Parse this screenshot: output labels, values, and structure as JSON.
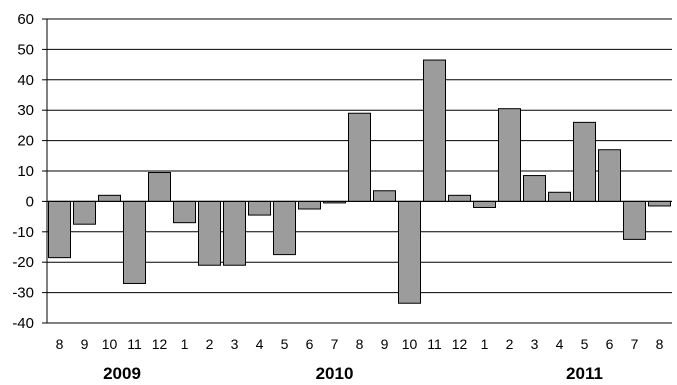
{
  "chart_data": {
    "type": "bar",
    "title": "",
    "xlabel": "",
    "ylabel": "",
    "ylim": [
      -40,
      60
    ],
    "yticks": [
      60,
      50,
      40,
      30,
      20,
      10,
      0,
      -10,
      -20,
      -30,
      -40
    ],
    "grid": true,
    "categories": [
      "8",
      "9",
      "10",
      "11",
      "12",
      "1",
      "2",
      "3",
      "4",
      "5",
      "6",
      "7",
      "8",
      "9",
      "10",
      "11",
      "12",
      "1",
      "2",
      "3",
      "4",
      "5",
      "6",
      "7",
      "8"
    ],
    "values": [
      -18.5,
      -7.5,
      2,
      -27,
      9.5,
      -7,
      -21,
      -21,
      -4.5,
      -17.5,
      -2.5,
      -0.5,
      29,
      3.5,
      -33.5,
      46.5,
      2,
      -2,
      30.5,
      8.5,
      3,
      26,
      17,
      -12.5,
      -1.5
    ],
    "year_labels": [
      {
        "label": "2009",
        "center_index": 2.5
      },
      {
        "label": "2010",
        "center_index": 11
      },
      {
        "label": "2011",
        "center_index": 21
      }
    ]
  }
}
